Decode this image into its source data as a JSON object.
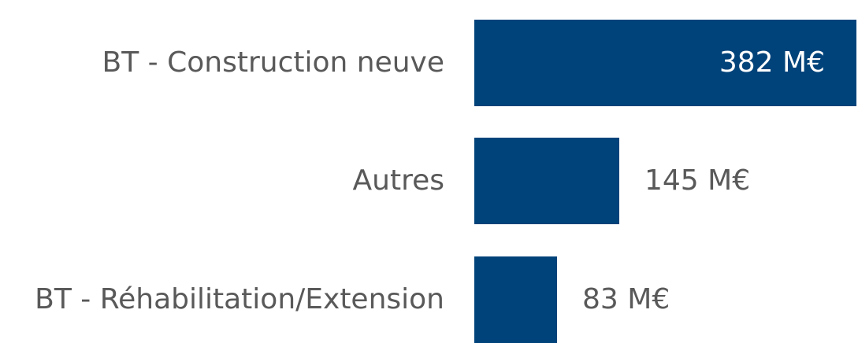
{
  "chart_data": {
    "type": "bar",
    "orientation": "horizontal",
    "categories": [
      "BT - Construction neuve",
      "Autres",
      "BT - Réhabilitation/Extension"
    ],
    "values": [
      382,
      145,
      83
    ],
    "value_labels": [
      "382 M€",
      "145 M€",
      "83 M€"
    ],
    "title": "",
    "xlabel": "",
    "ylabel": "",
    "xlim": [
      0,
      382
    ],
    "grid": false,
    "legend": "none",
    "bar_color": "#00437a",
    "label_color": "#595959",
    "inside_label_color": "#ffffff"
  }
}
